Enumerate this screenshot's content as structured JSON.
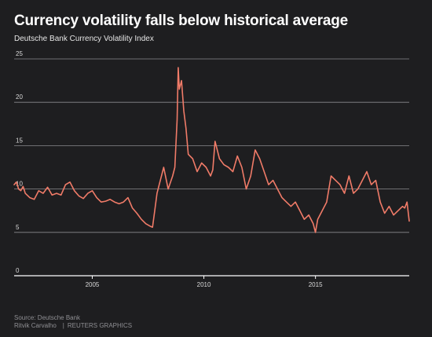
{
  "header": {
    "title": "Currency volatility falls below historical average",
    "subtitle": "Deutsche Bank Currency Volatility Index"
  },
  "footer": {
    "source": "Source: Deutsche Bank",
    "author": "Ritvik Carvalho",
    "separator": "|",
    "publisher": "REUTERS GRAPHICS"
  },
  "colors": {
    "background": "#1e1e20",
    "line": "#f07b68",
    "grid": "#8a8a8e",
    "axis": "#ffffff",
    "text": "#ffffff"
  },
  "chart_data": {
    "type": "line",
    "title": "Currency volatility falls below historical average",
    "subtitle": "Deutsche Bank Currency Volatility Index",
    "xlabel": "",
    "ylabel": "",
    "xlim": [
      2001.5,
      2019.2
    ],
    "ylim": [
      0,
      25
    ],
    "yticks": [
      0,
      5,
      10,
      15,
      20,
      25
    ],
    "xticks": [
      2005,
      2010,
      2015
    ],
    "grid": true,
    "legend": "none",
    "series": [
      {
        "x": [
          2001.5,
          2001.6,
          2001.7,
          2001.8,
          2001.9,
          2002.0,
          2002.2,
          2002.4,
          2002.6,
          2002.8,
          2003.0,
          2003.2,
          2003.4,
          2003.6,
          2003.8,
          2004.0,
          2004.2,
          2004.4,
          2004.6,
          2004.8,
          2005.0,
          2005.2,
          2005.4,
          2005.6,
          2005.8,
          2006.0,
          2006.2,
          2006.4,
          2006.6,
          2006.8,
          2007.0,
          2007.2,
          2007.4,
          2007.6,
          2007.7,
          2007.8,
          2007.9,
          2008.0,
          2008.2,
          2008.4,
          2008.6,
          2008.7,
          2008.8,
          2008.85,
          2008.9,
          2009.0,
          2009.1,
          2009.2,
          2009.3,
          2009.5,
          2009.7,
          2009.9,
          2010.1,
          2010.3,
          2010.4,
          2010.5,
          2010.7,
          2010.9,
          2011.1,
          2011.3,
          2011.5,
          2011.7,
          2011.9,
          2012.1,
          2012.3,
          2012.5,
          2012.7,
          2012.9,
          2013.1,
          2013.3,
          2013.5,
          2013.7,
          2013.9,
          2014.1,
          2014.3,
          2014.5,
          2014.7,
          2014.9,
          2015.0,
          2015.1,
          2015.3,
          2015.5,
          2015.7,
          2015.9,
          2016.1,
          2016.3,
          2016.5,
          2016.7,
          2016.9,
          2017.1,
          2017.3,
          2017.5,
          2017.7,
          2017.9,
          2018.1,
          2018.3,
          2018.5,
          2018.7,
          2018.9,
          2019.0,
          2019.1,
          2019.2
        ],
        "values": [
          10.5,
          10.8,
          10.0,
          9.8,
          10.3,
          9.5,
          9.0,
          8.8,
          9.8,
          9.5,
          10.2,
          9.3,
          9.5,
          9.3,
          10.5,
          10.8,
          9.8,
          9.2,
          8.9,
          9.5,
          9.8,
          9.0,
          8.5,
          8.6,
          8.8,
          8.5,
          8.3,
          8.5,
          9.0,
          7.8,
          7.2,
          6.5,
          6.0,
          5.7,
          5.6,
          7.5,
          9.5,
          10.5,
          12.5,
          10.0,
          11.5,
          12.5,
          18.0,
          24.0,
          21.5,
          22.5,
          19.0,
          17.0,
          14.0,
          13.5,
          12.0,
          13.0,
          12.5,
          11.5,
          12.2,
          15.5,
          13.5,
          12.8,
          12.5,
          12.0,
          13.8,
          12.5,
          10.0,
          11.5,
          14.5,
          13.5,
          12.0,
          10.5,
          11.0,
          10.0,
          9.0,
          8.5,
          8.0,
          8.5,
          7.5,
          6.5,
          7.0,
          6.0,
          5.0,
          6.5,
          7.5,
          8.5,
          11.5,
          11.0,
          10.5,
          9.5,
          11.5,
          9.5,
          10.0,
          11.0,
          12.0,
          10.5,
          11.0,
          8.5,
          7.2,
          8.0,
          7.0,
          7.5,
          8.0,
          7.8,
          8.5,
          6.3
        ]
      }
    ]
  }
}
